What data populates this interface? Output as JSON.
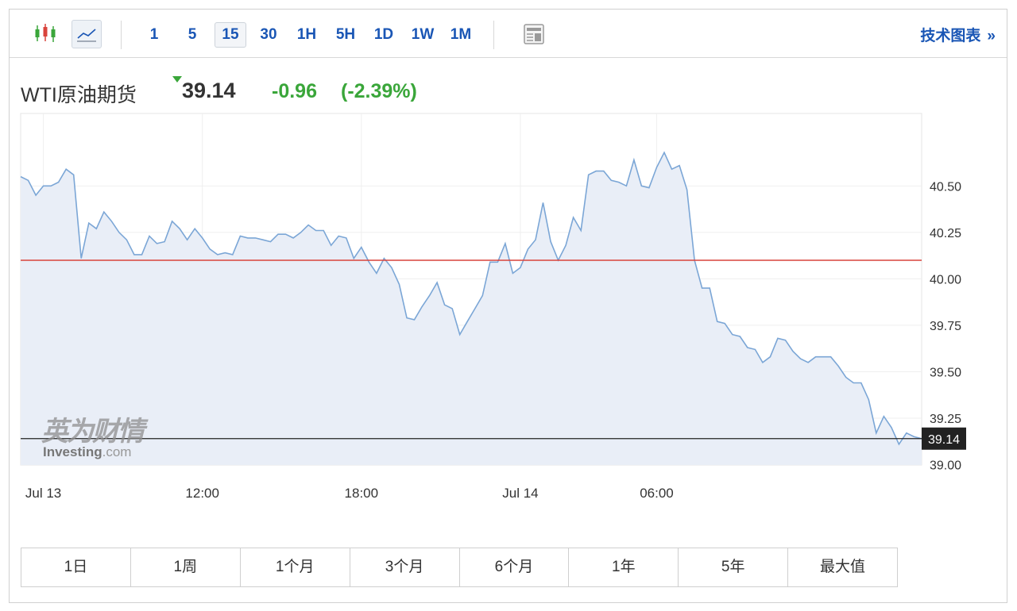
{
  "toolbar": {
    "timeframes": [
      "1",
      "5",
      "15",
      "30",
      "1H",
      "5H",
      "1D",
      "1W",
      "1M"
    ],
    "active_timeframe": "15",
    "tech_chart_label": "技术图表",
    "tech_chart_arrow": "»"
  },
  "instrument": {
    "name": "WTI原油期货",
    "price": "39.14",
    "change": "-0.96",
    "change_pct": "(-2.39%)",
    "arrow_color": "#3aa63a"
  },
  "watermark": {
    "cn": "英为财情",
    "en": "Investing",
    "en_suffix": ".com"
  },
  "ranges": [
    "1日",
    "1周",
    "1个月",
    "3个月",
    "6个月",
    "1年",
    "5年",
    "最大值"
  ],
  "colors": {
    "line": "#7ba6d6",
    "area": "#e9eef7",
    "prev_close_line": "#d9433c",
    "current_price_line": "#222222",
    "up": "#3aa63a",
    "link": "#1a56b5"
  },
  "chart_data": {
    "type": "area",
    "x_tick_labels": [
      "Jul 13",
      "12:00",
      "18:00",
      "Jul 14",
      "06:00"
    ],
    "x_tick_index": [
      3,
      24,
      45,
      66,
      84
    ],
    "y_ticks": [
      39.0,
      39.25,
      39.5,
      39.75,
      40.0,
      40.25,
      40.5
    ],
    "ylim": [
      38.998,
      40.89
    ],
    "prev_close": 40.1,
    "current_price": "39.14",
    "grid": true,
    "values": [
      40.55,
      40.53,
      40.45,
      40.5,
      40.5,
      40.52,
      40.59,
      40.56,
      40.11,
      40.3,
      40.27,
      40.36,
      40.31,
      40.25,
      40.21,
      40.13,
      40.13,
      40.23,
      40.19,
      40.2,
      40.31,
      40.27,
      40.21,
      40.27,
      40.22,
      40.16,
      40.13,
      40.14,
      40.13,
      40.23,
      40.22,
      40.22,
      40.21,
      40.2,
      40.24,
      40.24,
      40.22,
      40.25,
      40.29,
      40.26,
      40.26,
      40.18,
      40.23,
      40.22,
      40.11,
      40.17,
      40.09,
      40.03,
      40.11,
      40.06,
      39.97,
      39.79,
      39.78,
      39.85,
      39.91,
      39.98,
      39.86,
      39.84,
      39.7,
      39.77,
      39.84,
      39.91,
      40.09,
      40.09,
      40.19,
      40.03,
      40.06,
      40.16,
      40.21,
      40.41,
      40.2,
      40.1,
      40.18,
      40.33,
      40.26,
      40.56,
      40.58,
      40.58,
      40.53,
      40.52,
      40.5,
      40.64,
      40.5,
      40.49,
      40.6,
      40.68,
      40.59,
      40.61,
      40.48,
      40.1,
      39.95,
      39.95,
      39.77,
      39.76,
      39.7,
      39.69,
      39.63,
      39.62,
      39.55,
      39.58,
      39.68,
      39.67,
      39.61,
      39.57,
      39.55,
      39.58,
      39.58,
      39.58,
      39.53,
      39.47,
      39.44,
      39.44,
      39.35,
      39.17,
      39.26,
      39.2,
      39.11,
      39.17,
      39.15,
      39.14
    ]
  }
}
